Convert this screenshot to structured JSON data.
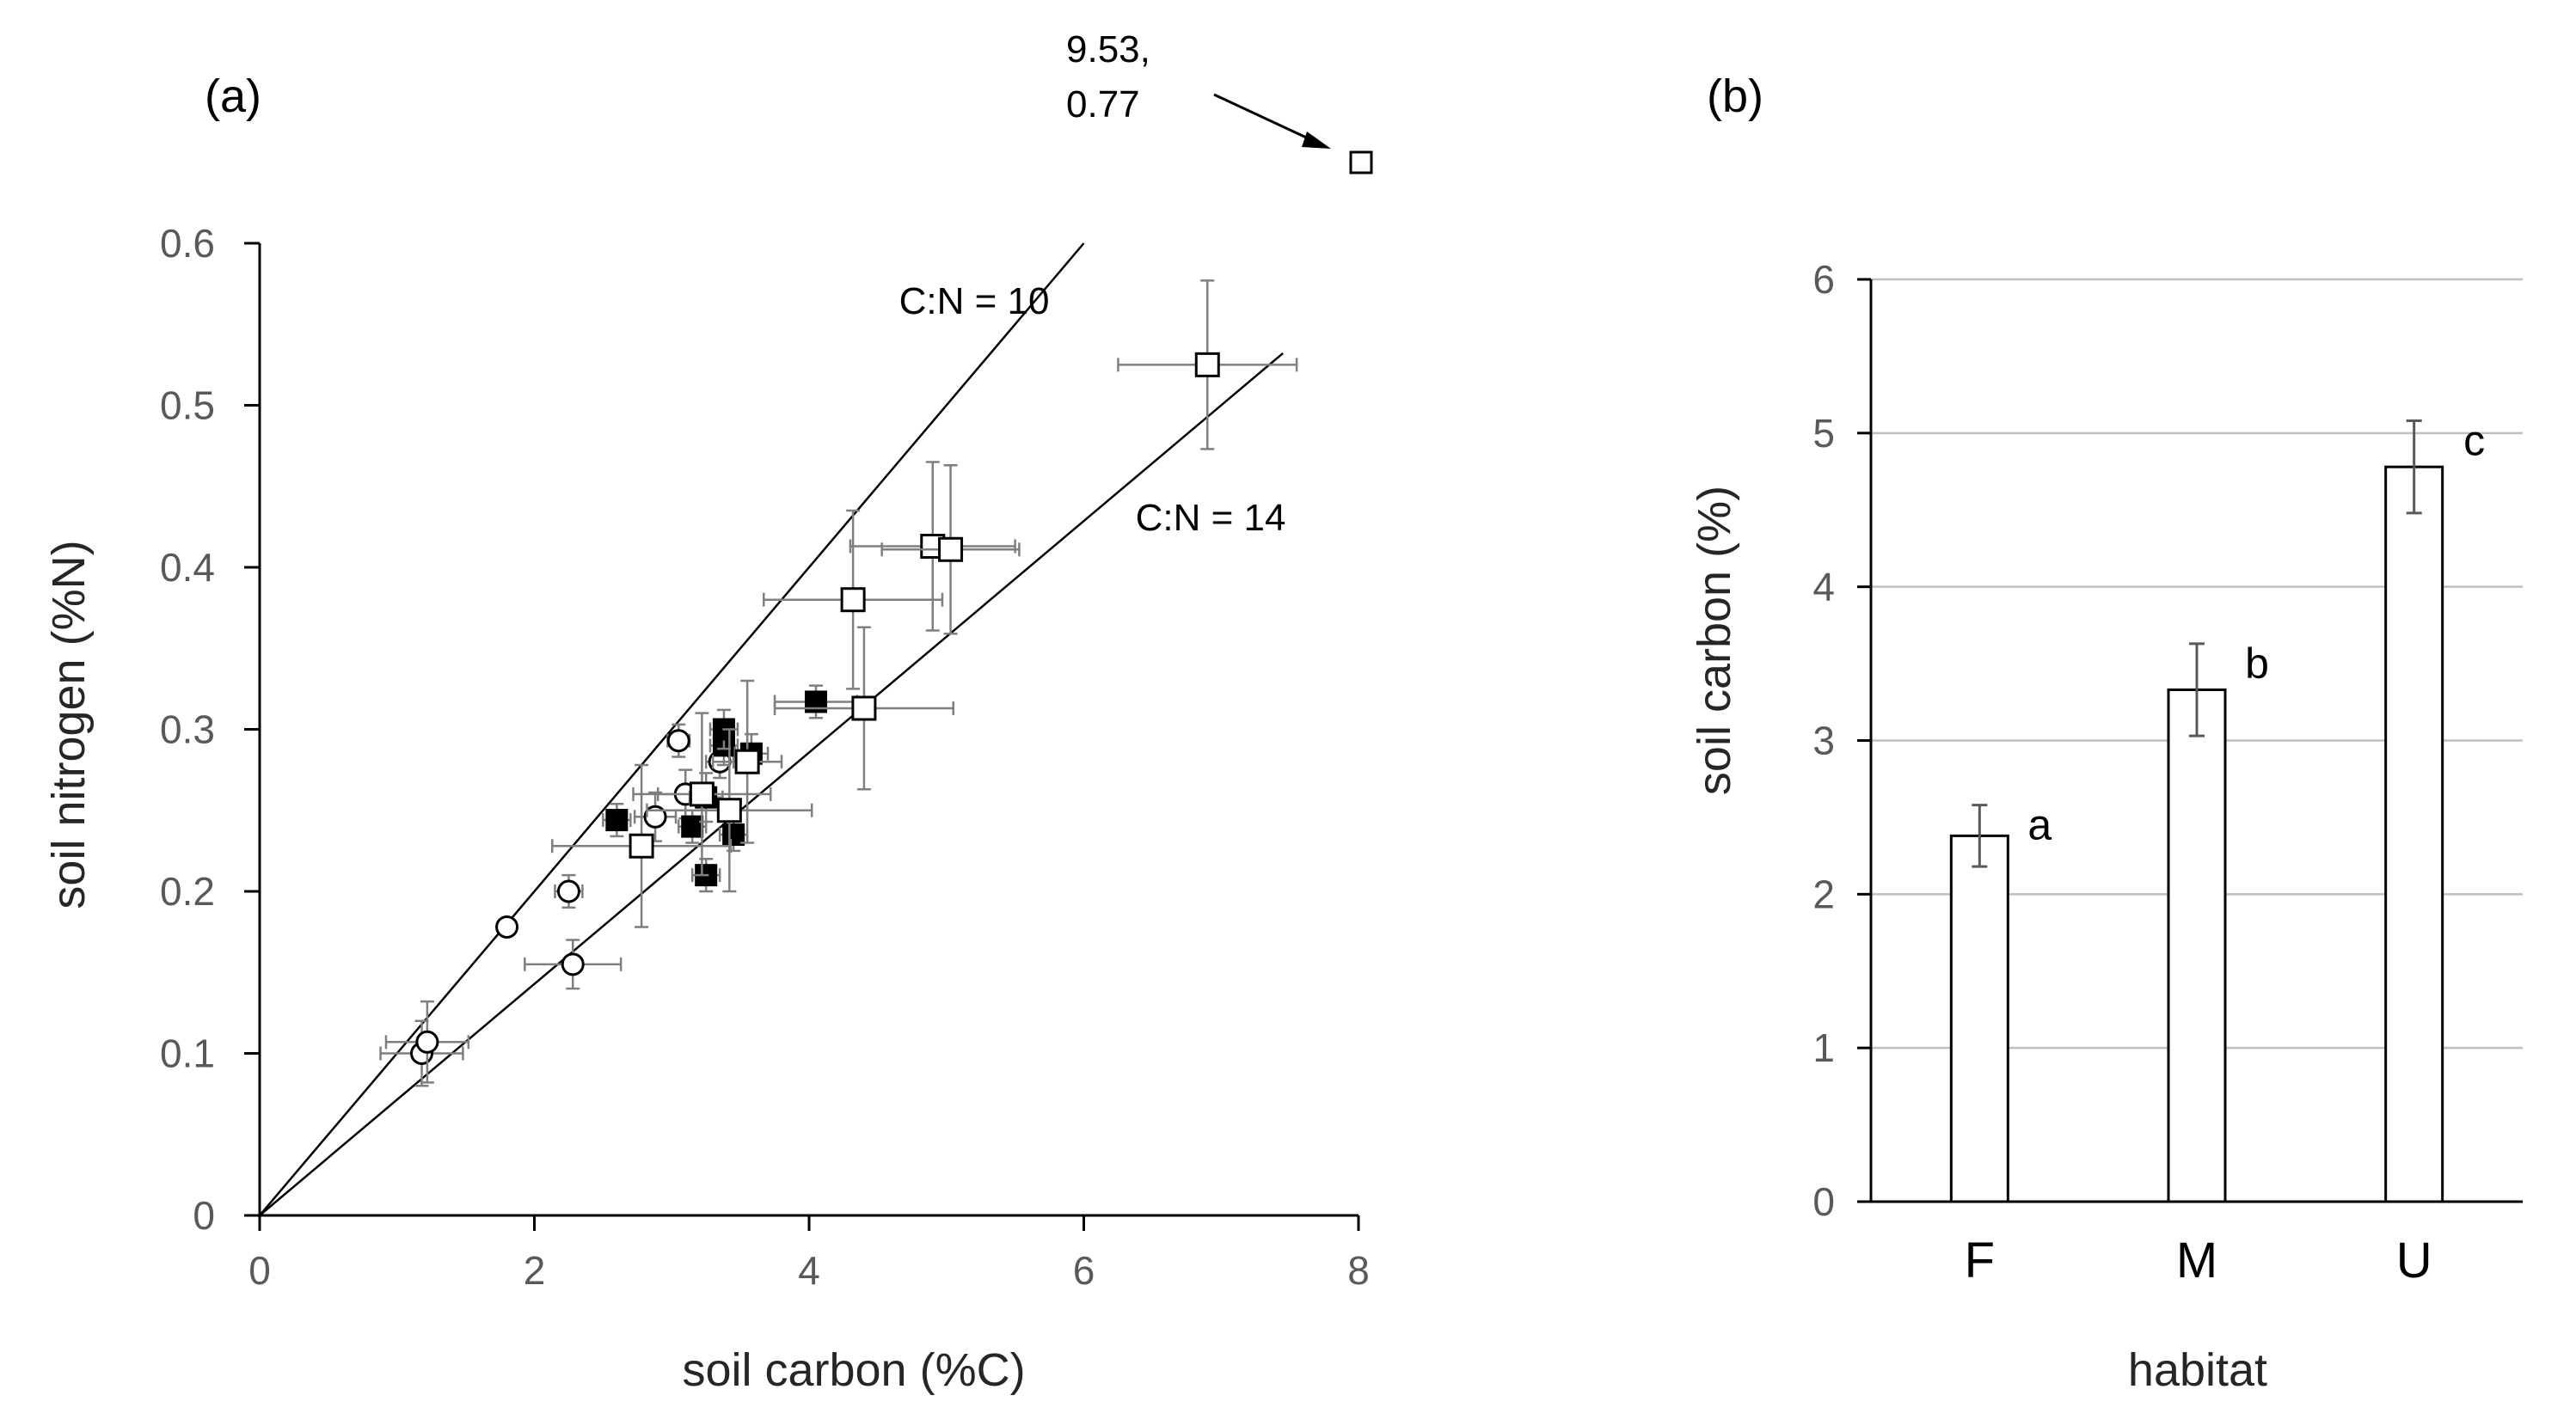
{
  "chart_data": [
    {
      "panel_label": "(a)",
      "type": "scatter",
      "xlabel": "soil carbon (%C)",
      "ylabel": "soil nitrogen (%N)",
      "xlim": [
        0,
        8
      ],
      "ylim": [
        0,
        0.6
      ],
      "xticks": [
        "0",
        "2",
        "4",
        "6",
        "8"
      ],
      "yticks": [
        "0",
        "0.1",
        "0.2",
        "0.3",
        "0.4",
        "0.5",
        "0.6"
      ],
      "reference_lines": [
        {
          "label": "C:N = 10",
          "ratio": 10
        },
        {
          "label": "C:N = 14",
          "ratio": 14
        }
      ],
      "offscale_point": {
        "label": "9.53,\n0.77",
        "x": 9.53,
        "y": 0.77,
        "marker": "square-open"
      },
      "series": [
        {
          "name": "open circles",
          "marker": "circle-open",
          "points": [
            {
              "x": 1.18,
              "y": 0.1,
              "xerr": 0.3,
              "yerr": 0.02
            },
            {
              "x": 1.22,
              "y": 0.107,
              "xerr": 0.3,
              "yerr": 0.025
            },
            {
              "x": 1.8,
              "y": 0.178,
              "xerr": 0.05,
              "yerr": 0.005
            },
            {
              "x": 2.25,
              "y": 0.2,
              "xerr": 0.1,
              "yerr": 0.01
            },
            {
              "x": 2.28,
              "y": 0.155,
              "xerr": 0.35,
              "yerr": 0.015
            },
            {
              "x": 2.88,
              "y": 0.246,
              "xerr": 0.15,
              "yerr": 0.015
            },
            {
              "x": 3.05,
              "y": 0.293,
              "xerr": 0.08,
              "yerr": 0.01
            },
            {
              "x": 3.1,
              "y": 0.26,
              "xerr": 0.2,
              "yerr": 0.015
            },
            {
              "x": 3.35,
              "y": 0.28,
              "xerr": 0.1,
              "yerr": 0.01
            }
          ]
        },
        {
          "name": "filled squares",
          "marker": "square-filled",
          "points": [
            {
              "x": 2.6,
              "y": 0.244,
              "xerr": 0.1,
              "yerr": 0.01
            },
            {
              "x": 3.15,
              "y": 0.24,
              "xerr": 0.1,
              "yerr": 0.01
            },
            {
              "x": 3.25,
              "y": 0.21,
              "xerr": 0.1,
              "yerr": 0.01
            },
            {
              "x": 3.25,
              "y": 0.258,
              "xerr": 0.12,
              "yerr": 0.015
            },
            {
              "x": 3.38,
              "y": 0.29,
              "xerr": 0.1,
              "yerr": 0.012
            },
            {
              "x": 3.38,
              "y": 0.3,
              "xerr": 0.1,
              "yerr": 0.012
            },
            {
              "x": 3.45,
              "y": 0.235,
              "xerr": 0.1,
              "yerr": 0.01
            },
            {
              "x": 3.58,
              "y": 0.285,
              "xerr": 0.12,
              "yerr": 0.012
            },
            {
              "x": 4.05,
              "y": 0.317,
              "xerr": 0.3,
              "yerr": 0.01
            }
          ]
        },
        {
          "name": "open squares",
          "marker": "square-open",
          "points": [
            {
              "x": 2.78,
              "y": 0.228,
              "xerr": 0.65,
              "yerr": 0.05
            },
            {
              "x": 3.22,
              "y": 0.26,
              "xerr": 0.5,
              "yerr": 0.05
            },
            {
              "x": 3.42,
              "y": 0.25,
              "xerr": 0.6,
              "yerr": 0.05
            },
            {
              "x": 3.55,
              "y": 0.28,
              "xerr": 0.25,
              "yerr": 0.05
            },
            {
              "x": 4.32,
              "y": 0.38,
              "xerr": 0.65,
              "yerr": 0.055
            },
            {
              "x": 4.4,
              "y": 0.313,
              "xerr": 0.65,
              "yerr": 0.05
            },
            {
              "x": 4.9,
              "y": 0.413,
              "xerr": 0.6,
              "yerr": 0.052
            },
            {
              "x": 5.03,
              "y": 0.411,
              "xerr": 0.5,
              "yerr": 0.052
            },
            {
              "x": 6.9,
              "y": 0.525,
              "xerr": 0.65,
              "yerr": 0.052
            }
          ]
        }
      ]
    },
    {
      "panel_label": "(b)",
      "type": "bar",
      "xlabel": "habitat",
      "ylabel": "soil carbon (%)",
      "ylim": [
        0,
        6
      ],
      "yticks": [
        "0",
        "1",
        "2",
        "3",
        "4",
        "5",
        "6"
      ],
      "categories": [
        "F",
        "M",
        "U"
      ],
      "values": [
        2.38,
        3.33,
        4.78
      ],
      "errors": [
        0.2,
        0.3,
        0.3
      ],
      "significance_letters": [
        "a",
        "b",
        "c"
      ],
      "grid": true
    }
  ]
}
